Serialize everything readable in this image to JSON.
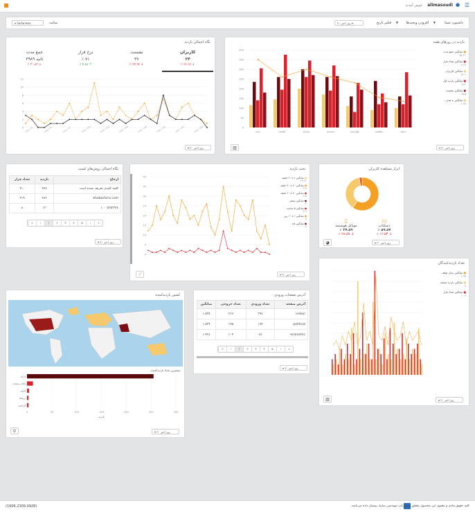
{
  "topbar": {
    "username": "alimasoudi",
    "welcome": "خوش آمدید"
  },
  "filters": {
    "dashboard": "داشبورد شما",
    "add_widget": "افزودن ویجت‌ها",
    "date_filter": "فیلتر تاریخ",
    "date_value": "۳۰ روز اخیر",
    "site_label": "سایت",
    "site_value": "Sedanews"
  },
  "colors": {
    "accent": "#f4a024",
    "red": "#d9232b",
    "dark": "#7b0e12",
    "light": "#f5c96c"
  },
  "overview": {
    "title": "نگاه اجمالی بازدید",
    "stats": [
      {
        "label": "کاربران",
        "value": "۲۴",
        "change": "٪ ۶۶.۶۶",
        "dir": "down",
        "icon": "user-icon"
      },
      {
        "label": "نشست",
        "value": "۳۷",
        "change": "٪ ۲۲.۹۲",
        "dir": "down",
        "icon": "user-icon"
      },
      {
        "label": "نرخ فرار",
        "value": "٪ ۷۱",
        "change": "٪ ۴.۸۸",
        "dir": "up",
        "icon": "percent-icon"
      },
      {
        "label": "جمع مدت",
        "value": "۳۹۸۹ ثانیه",
        "change": "٪ ۳۰.۸۳",
        "dir": "down",
        "icon": "clock-icon"
      }
    ],
    "date_select": "۳۰ روز اخیر"
  },
  "weekday": {
    "title": "بازدید در روزهای هفته",
    "legend": [
      "میانگین جمع مدت",
      "میانگین تعداد فرار",
      "میانگین کاربران",
      "میانگین بازدید اول",
      "میانگین نشست",
      "میانگین به هدف"
    ],
    "legend_values": [
      "۵۲.۳۱",
      "۱۶.۷",
      "۲۲.۱",
      "۱۸.۴",
      "۱۵.۵",
      "۱.۷۷"
    ],
    "date_select": "۳۰ روز اخیر"
  },
  "referrers": {
    "title": "نگاه اجمالی روش‌های کسب",
    "headers": {
      "ref": "ارجاع",
      "visits": "بازدید",
      "bounce": "تعداد فرار"
    },
    "rows": [
      {
        "ref": "کلمه کلیدی تعریف نشده است",
        "visits": "۲۷۸",
        "bounce": "۲۱۰"
      },
      {
        "ref": "khabarfarsi.com",
        "visits": "۲۸۶",
        "bounce": "۲۱۹"
      },
      {
        "ref": "۱۰۰۰۵۳۵۳۹/۸",
        "visits": "۱۳",
        "bounce": "۸"
      }
    ],
    "pages": [
      "»",
      "›",
      "۱",
      "۲",
      "۳",
      "۴",
      "۵",
      "‹",
      "«"
    ],
    "date_select": "۳۰ روز اخیر"
  },
  "trend": {
    "title": "تحت بازدید",
    "legend": [
      "میانگین ۱ تا ۲۰ دقیقه",
      "میانگین ۲۰ تا ۴۰ دقیقه",
      "میانگین ۴۰ تا ۶۰ دقیقه",
      "میانگین بیشتر",
      "میانگین ۵ ساعت",
      "میانگین ۱ تا ۱۰ روز",
      "میانگین ماه"
    ],
    "legend_values": [
      "۲۷.۷۱",
      "۲.۷",
      "۲.۵",
      "۰.۳",
      "۲.۷",
      "۰.۷",
      "۰.۸"
    ],
    "date_select": "۳۰ روز اخیر"
  },
  "devices": {
    "title": "ابزار مشاهده کاربران",
    "desktop": {
      "label": "دسکتاپ",
      "value": "٪ ۵۹.۵۷",
      "change": "٪ ۱۶.۵۴"
    },
    "mobile": {
      "label": "موبایل هوشمند",
      "value": "٪ ۳۷.۵۹",
      "change": "٪ ۲۸.۵۷"
    },
    "date_select": "۳۰ روز اخیر"
  },
  "engagement": {
    "title": "تعداد بازدیدکنندگان",
    "legend": [
      "میانگین زمان توقف",
      "میانگین بازدید صفحه",
      "میانگین تعداد فرار"
    ],
    "legend_values": [
      "۱.۹۷",
      "۰.۷",
      "۱.۰۷"
    ],
    "date_select": "۳۰ روز اخیر"
  },
  "country": {
    "title": "کشور بازدیدکننده",
    "bar_title": "بیشترین تعداد بازدیدکننده",
    "x_label": "بازدید",
    "date_select": "۳۰ روز اخیر"
  },
  "pages_table": {
    "title": "آدرس صفحات ورودی",
    "headers": {
      "page": "آدرس صفحه",
      "entries": "تعداد ورودی",
      "exits": "تعداد خروجی",
      "avg": "میانگین"
    },
    "rows": [
      {
        "page": "/index",
        "entries": "۳۹۷",
        "exits": "۳۶۷",
        "avg": "۱.۵۹۹"
      },
      {
        "page": "political",
        "entries": "۱۷۴",
        "exits": "۱۹۵",
        "avg": "۱.۵۳۹"
      },
      {
        "page": "economic",
        "entries": "۸۷",
        "exits": "۱۰۴",
        "avg": "۱.۴۲۸"
      }
    ],
    "pages": [
      "»",
      "›",
      "۱",
      "۲",
      "۳",
      "۴",
      "۵",
      "‹",
      "«"
    ],
    "date_select": "۳۰ روز اخیر"
  },
  "footer": {
    "left": "(1906.2309.0928)",
    "right": "کلیه حقوق مادی و معنوی این محصول متعلق به شرکت مهندسی ساینا، پیشتاز داده می‌باشد."
  },
  "chart_data": [
    {
      "type": "line",
      "title": "نگاه اجمالی بازدید",
      "ylim": [
        0,
        12
      ],
      "series": [
        {
          "name": "کاربران",
          "values": [
            1,
            3,
            2,
            1,
            2,
            4,
            3,
            6,
            2,
            4,
            5,
            11,
            3,
            4,
            2,
            5,
            3,
            2,
            4,
            6,
            2,
            3,
            7,
            3,
            2,
            5,
            6,
            3,
            2,
            1
          ]
        },
        {
          "name": "نشست",
          "values": [
            3,
            2,
            0,
            0,
            1,
            1,
            1,
            2,
            2,
            2,
            2,
            2,
            1,
            2,
            1,
            2,
            1,
            2,
            2,
            3,
            2,
            1,
            8,
            3,
            2,
            2,
            2,
            3,
            2,
            0
          ]
        }
      ]
    },
    {
      "type": "bar",
      "title": "بازدید در روزهای هفته",
      "ylim": [
        0,
        400
      ],
      "categories": [
        "شنبه",
        "یکشنبه",
        "دوشنبه",
        "سه‌شنبه",
        "چهارشنبه",
        "پنجشنبه",
        "جمعه"
      ],
      "series": [
        {
          "name": "میانگین جمع مدت",
          "values": [
            115,
            145,
            200,
            170,
            110,
            90,
            100
          ]
        },
        {
          "name": "میانگین تعداد فرار",
          "values": [
            235,
            260,
            300,
            260,
            160,
            240,
            160
          ]
        },
        {
          "name": "میانگین کاربران",
          "values": [
            140,
            195,
            260,
            190,
            80,
            120,
            120
          ]
        },
        {
          "name": "میانگین بازدید اول",
          "values": [
            305,
            375,
            345,
            320,
            230,
            175,
            285
          ]
        },
        {
          "name": "میانگین نشست",
          "values": [
            180,
            250,
            270,
            265,
            195,
            130,
            165
          ]
        }
      ]
    },
    {
      "type": "line",
      "title": "تحت بازدید",
      "ylim": [
        0,
        40
      ],
      "series": [
        {
          "name": "میانگین ۱ تا ۲۰ دقیقه",
          "values": [
            12,
            15,
            25,
            18,
            22,
            30,
            20,
            16,
            28,
            24,
            18,
            20,
            15,
            22,
            26,
            14,
            10,
            18,
            35,
            22,
            12,
            28,
            25,
            20,
            18,
            28,
            12,
            8,
            15,
            5
          ]
        },
        {
          "name": "میانگین بیشتر",
          "values": [
            2,
            1,
            1,
            2,
            1,
            3,
            2,
            1,
            2,
            1,
            2,
            1,
            3,
            2,
            1,
            2,
            1,
            2,
            12,
            3,
            2,
            1,
            2,
            1,
            2,
            1,
            3,
            1,
            1,
            0
          ]
        }
      ]
    },
    {
      "type": "pie",
      "title": "ابزار مشاهده کاربران",
      "categories": [
        "دسکتاپ",
        "موبایل هوشمند",
        "سایر"
      ],
      "values": [
        59.57,
        37.59,
        2.84
      ]
    },
    {
      "type": "bar",
      "title": "کشور بازدیدکننده",
      "categories": [
        "ایران",
        "ایالات متحده",
        "آلمان",
        "بریتانیا",
        "فرانسه"
      ],
      "values": [
        255,
        12,
        4,
        3,
        3
      ],
      "xlabel": "بازدید"
    }
  ]
}
